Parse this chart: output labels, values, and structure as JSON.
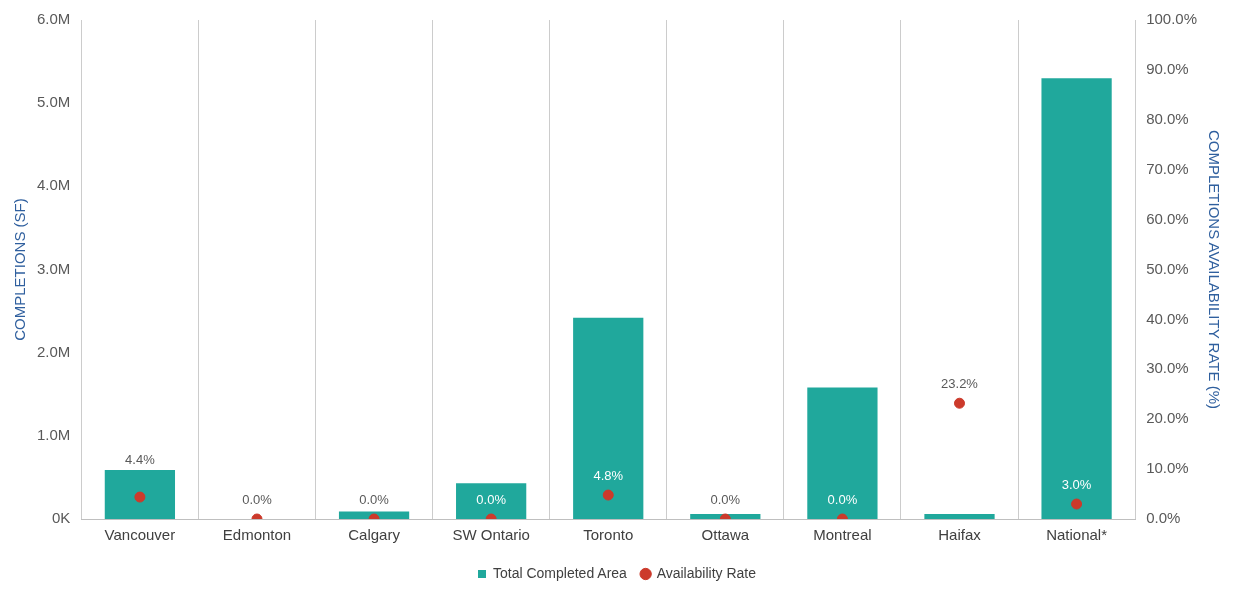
{
  "chart_data": {
    "type": "bar",
    "categories": [
      "Vancouver",
      "Edmonton",
      "Calgary",
      "SW Ontario",
      "Toronto",
      "Ottawa",
      "Montreal",
      "Haifax",
      "National*"
    ],
    "ylabel": "COMPLETIONS (SF)",
    "y2label": "COMPLETIONS AVAILABILITY RATE (%)",
    "series": [
      {
        "name": "Total Completed Area",
        "color": "#20a89c",
        "values": [
          0.59,
          0,
          0.09,
          0.43,
          2.42,
          0.06,
          1.58,
          0.06,
          5.3
        ]
      },
      {
        "name": "Availability Rate",
        "type": "scatter",
        "axis": "y2",
        "color": "#cc3a2b",
        "marker": "circle",
        "values": [
          4.4,
          0,
          0,
          0,
          4.8,
          0,
          0,
          23.2,
          3.0
        ],
        "value_labels": [
          "4.4%",
          "0.0%",
          "0.0%",
          "0.0%",
          "4.8%",
          "0.0%",
          "0.0%",
          "23.2%",
          "3.0%"
        ]
      }
    ],
    "ylim": [
      0,
      6
    ],
    "yticks": [
      {
        "value": 0,
        "label": "0K"
      },
      {
        "value": 1,
        "label": "1.0M"
      },
      {
        "value": 2,
        "label": "2.0M"
      },
      {
        "value": 3,
        "label": "3.0M"
      },
      {
        "value": 4,
        "label": "4.0M"
      },
      {
        "value": 5,
        "label": "5.0M"
      },
      {
        "value": 6,
        "label": "6.0M"
      }
    ],
    "y2lim": [
      0,
      100
    ],
    "y2ticks": [
      {
        "value": 0,
        "label": "0.0%"
      },
      {
        "value": 10,
        "label": "10.0%"
      },
      {
        "value": 20,
        "label": "20.0%"
      },
      {
        "value": 30,
        "label": "30.0%"
      },
      {
        "value": 40,
        "label": "40.0%"
      },
      {
        "value": 50,
        "label": "50.0%"
      },
      {
        "value": 60,
        "label": "60.0%"
      },
      {
        "value": 70,
        "label": "70.0%"
      },
      {
        "value": 80,
        "label": "80.0%"
      },
      {
        "value": 90,
        "label": "90.0%"
      },
      {
        "value": 100,
        "label": "100.0%"
      }
    ],
    "grid": "x",
    "legend": "bottom"
  }
}
